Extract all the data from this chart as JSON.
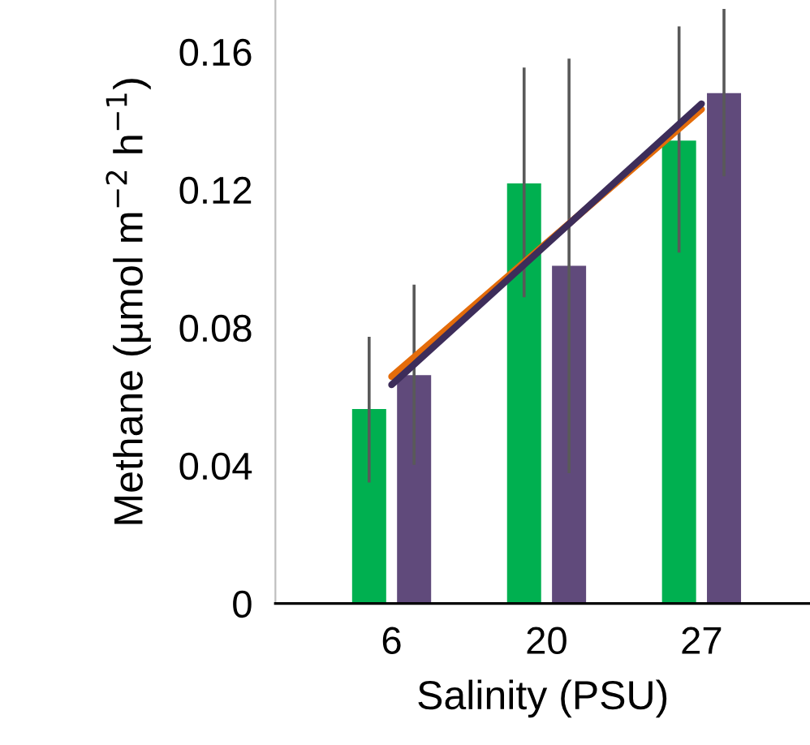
{
  "chart_data": {
    "type": "bar",
    "xlabel": "Salinity (PSU)",
    "ylabel": "Methane (µmol m$^{−2}$ h$^{−1}$)",
    "categories": [
      "6",
      "20",
      "27"
    ],
    "ylim": [
      0,
      0.175
    ],
    "yticks": [
      0,
      0.04,
      0.08,
      0.12,
      0.16
    ],
    "grid": false,
    "legend": false,
    "series": [
      {
        "color": "#00b050",
        "values": [
          0.0564,
          0.1218,
          0.1342
        ],
        "errors": [
          [
            0.0355,
            0.0769
          ],
          [
            0.0892,
            0.155
          ],
          [
            0.1022,
            0.1669
          ]
        ]
      },
      {
        "color": "#604a7b",
        "values": [
          0.0662,
          0.0979,
          0.148
        ],
        "errors": [
          [
            0.0406,
            0.092
          ],
          [
            0.0382,
            0.1576
          ],
          [
            0.1243,
            0.172
          ]
        ]
      },
      {
        "type": "line",
        "color": "#e46c0a",
        "x": [
          "6",
          "27"
        ],
        "values": [
          0.0658,
          0.1433
        ]
      },
      {
        "type": "line",
        "color": "#3d2d5a",
        "x": [
          "6",
          "27"
        ],
        "values": [
          0.0634,
          0.1449
        ]
      }
    ]
  }
}
